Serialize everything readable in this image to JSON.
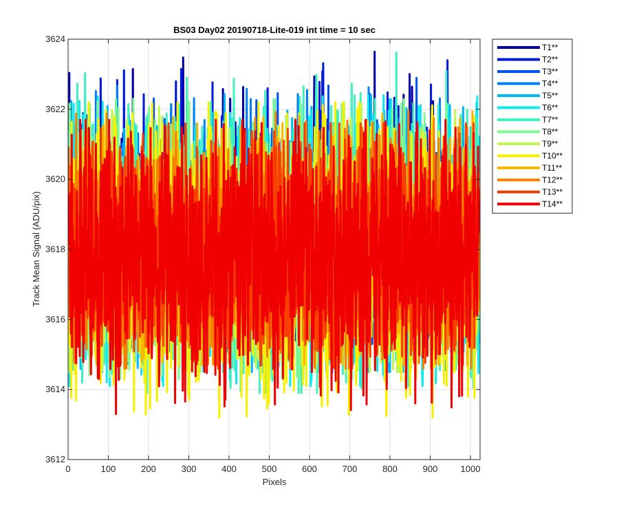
{
  "chart_data": {
    "type": "line",
    "title": "BS03 Day02 20190718-Lite-019 int time = 10 sec",
    "xlabel": "Pixels",
    "ylabel": "Track Mean Signal (ADU/pix)",
    "xlim": [
      0,
      1024
    ],
    "ylim": [
      3612,
      3624
    ],
    "xticks": [
      0,
      100,
      200,
      300,
      400,
      500,
      600,
      700,
      800,
      900,
      1000
    ],
    "yticks": [
      3612,
      3614,
      3616,
      3618,
      3620,
      3622,
      3624
    ],
    "grid": true,
    "legend_position": "outside-top-right",
    "series": [
      {
        "name": "T1**",
        "color": "#0000a8",
        "mean": 3618.3,
        "min": 3615.5,
        "max": 3623.7
      },
      {
        "name": "T2**",
        "color": "#0018d8",
        "mean": 3618.3,
        "min": 3615.4,
        "max": 3623.4
      },
      {
        "name": "T3**",
        "color": "#0050f0",
        "mean": 3618.2,
        "min": 3615.3,
        "max": 3623.0
      },
      {
        "name": "T4**",
        "color": "#0080f8",
        "mean": 3618.2,
        "min": 3615.0,
        "max": 3622.7
      },
      {
        "name": "T5**",
        "color": "#00b8f8",
        "mean": 3618.1,
        "min": 3614.5,
        "max": 3622.5
      },
      {
        "name": "T6**",
        "color": "#10e8f0",
        "mean": 3618.1,
        "min": 3614.1,
        "max": 3622.4
      },
      {
        "name": "T7**",
        "color": "#40f0c0",
        "mean": 3618.1,
        "min": 3613.9,
        "max": 3623.7
      },
      {
        "name": "T8**",
        "color": "#80f890",
        "mean": 3618.0,
        "min": 3614.3,
        "max": 3622.3
      },
      {
        "name": "T9**",
        "color": "#c0f850",
        "mean": 3618.0,
        "min": 3614.5,
        "max": 3622.4
      },
      {
        "name": "T10**",
        "color": "#f8f000",
        "mean": 3617.9,
        "min": 3613.2,
        "max": 3622.2
      },
      {
        "name": "T11**",
        "color": "#f8b800",
        "mean": 3617.9,
        "min": 3614.7,
        "max": 3622.0
      },
      {
        "name": "T12**",
        "color": "#f88000",
        "mean": 3617.9,
        "min": 3614.6,
        "max": 3622.3
      },
      {
        "name": "T13**",
        "color": "#f84000",
        "mean": 3617.9,
        "min": 3614.6,
        "max": 3621.6
      },
      {
        "name": "T14**",
        "color": "#f00000",
        "mean": 3617.9,
        "min": 3613.3,
        "max": 3621.7
      }
    ]
  }
}
